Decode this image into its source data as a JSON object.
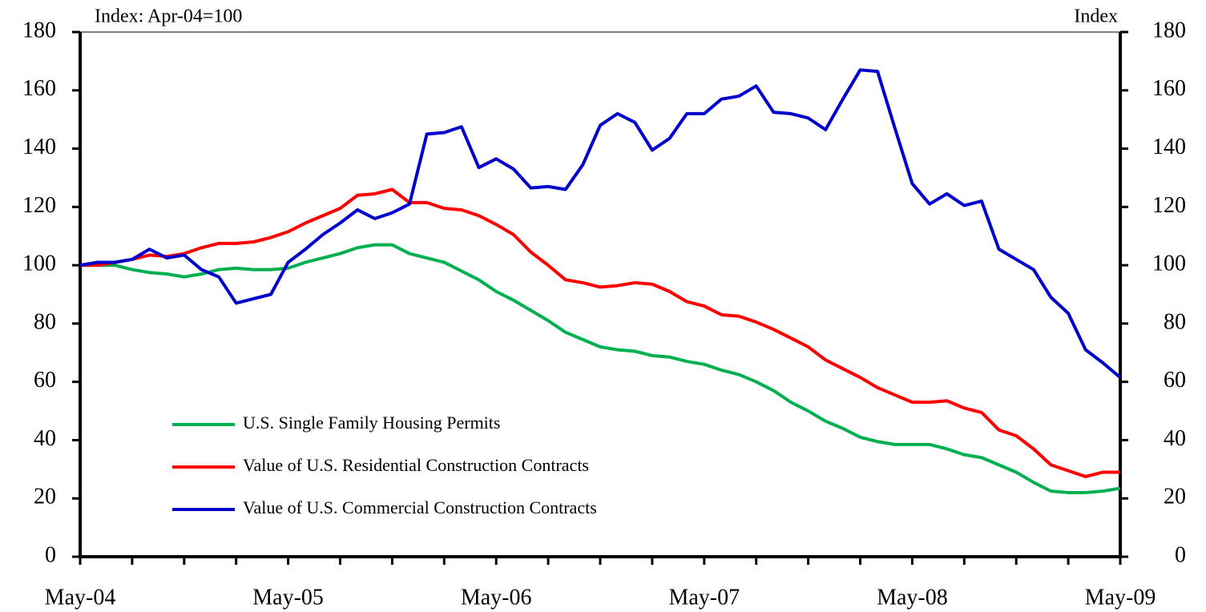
{
  "chart_data": {
    "type": "line",
    "title_left": "Index: Apr-04=100",
    "title_right": "Index",
    "categories": [
      "May-04",
      null,
      null,
      null,
      null,
      null,
      null,
      null,
      null,
      null,
      null,
      null,
      "May-05",
      null,
      null,
      null,
      null,
      null,
      null,
      null,
      null,
      null,
      null,
      null,
      "May-06",
      null,
      null,
      null,
      null,
      null,
      null,
      null,
      null,
      null,
      null,
      null,
      "May-07",
      null,
      null,
      null,
      null,
      null,
      null,
      null,
      null,
      null,
      null,
      null,
      "May-08",
      null,
      null,
      null,
      null,
      null,
      null,
      null,
      null,
      null,
      null,
      null,
      "May-09"
    ],
    "series": [
      {
        "name": "U.S. Single Family Housing Permits",
        "color": "#00b050",
        "values": [
          100,
          100,
          100,
          98.5,
          97.5,
          97,
          96,
          97,
          98.5,
          99,
          98.5,
          98.5,
          99,
          101,
          102.5,
          104,
          106,
          107,
          107,
          104,
          102.5,
          101,
          98,
          95,
          91,
          88,
          84.5,
          81,
          77,
          74.5,
          72,
          71,
          70.5,
          69,
          68.5,
          67,
          66,
          64,
          62.5,
          60,
          57,
          53,
          50,
          46.5,
          44,
          41,
          39.5,
          38.5,
          38.5,
          38.5,
          37,
          35,
          34,
          31.5,
          29,
          25.5,
          22.5,
          22,
          22,
          22.5,
          23.5
        ]
      },
      {
        "name": "Value of U.S. Residential Construction Contracts",
        "color": "#ff0000",
        "values": [
          100,
          100,
          101,
          102,
          103.5,
          103,
          104,
          106,
          107.5,
          107.5,
          108,
          109.5,
          111.5,
          114.5,
          117,
          119.5,
          124,
          124.5,
          126,
          121.5,
          121.5,
          119.5,
          119,
          117,
          114,
          110.5,
          104.5,
          100,
          95,
          94,
          92.5,
          93,
          94,
          93.5,
          91,
          87.5,
          86,
          83,
          82.5,
          80.5,
          78,
          75,
          72,
          67.5,
          64.5,
          61.5,
          58,
          55.5,
          53,
          53,
          53.5,
          51,
          49.5,
          43.5,
          41.5,
          37,
          31.5,
          29.5,
          27.5,
          29,
          29
        ]
      },
      {
        "name": "Value of U.S. Commercial Construction Contracts",
        "color": "#0000cc",
        "values": [
          100,
          101,
          101,
          102,
          105.5,
          102.5,
          103.5,
          98.5,
          96,
          87,
          88.5,
          90,
          101,
          105.5,
          110.5,
          114.5,
          119,
          116,
          118,
          121,
          145,
          145.5,
          147.5,
          133.5,
          136.5,
          133,
          126.5,
          127,
          126,
          134.5,
          148,
          152,
          149,
          139.5,
          143.5,
          152,
          152,
          157,
          158,
          161.5,
          152.5,
          152,
          150.5,
          146.5,
          157,
          167,
          166.5,
          147,
          128,
          121,
          124.5,
          120.5,
          122,
          105.5,
          102,
          98.5,
          89,
          83.5,
          71,
          66.5,
          61.5
        ]
      }
    ],
    "ylim": [
      0,
      180
    ],
    "yticks": [
      0,
      20,
      40,
      60,
      80,
      100,
      120,
      140,
      160,
      180
    ],
    "y2lim": [
      0,
      180
    ],
    "y2ticks": [
      0,
      20,
      40,
      60,
      80,
      100,
      120,
      140,
      160,
      180
    ],
    "grid": false
  }
}
